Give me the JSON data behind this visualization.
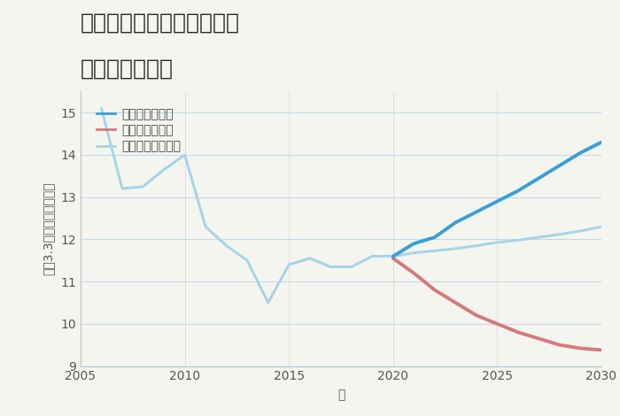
{
  "title_line1": "三重県桑名市長島町又木の",
  "title_line2": "土地の価格推移",
  "xlabel": "年",
  "ylabel": "坪（3.3㎡）単価（万円）",
  "background_color": "#f5f5f0",
  "plot_background": "#f5f5f0",
  "ylim": [
    9,
    15.5
  ],
  "xlim": [
    2005,
    2030
  ],
  "yticks": [
    9,
    10,
    11,
    12,
    13,
    14,
    15
  ],
  "xticks": [
    2005,
    2010,
    2015,
    2020,
    2025,
    2030
  ],
  "normal_scenario": {
    "x": [
      2006,
      2007,
      2008,
      2009,
      2010,
      2011,
      2012,
      2013,
      2014,
      2015,
      2016,
      2017,
      2018,
      2019,
      2020
    ],
    "y": [
      15.1,
      13.2,
      13.25,
      13.65,
      14.0,
      12.3,
      11.85,
      11.5,
      10.5,
      11.4,
      11.55,
      11.35,
      11.35,
      11.6,
      11.6
    ],
    "color": "#a8d4e6",
    "linewidth": 2.2,
    "label": "ノーマルシナリオ"
  },
  "good_scenario": {
    "x": [
      2020,
      2021,
      2022,
      2023,
      2024,
      2025,
      2026,
      2027,
      2028,
      2029,
      2030
    ],
    "y": [
      11.6,
      11.9,
      12.05,
      12.4,
      12.65,
      12.9,
      13.15,
      13.45,
      13.75,
      14.05,
      14.3
    ],
    "color": "#3a9fd5",
    "linewidth": 2.8,
    "label": "グッドシナリオ"
  },
  "bad_scenario": {
    "x": [
      2020,
      2021,
      2022,
      2023,
      2024,
      2025,
      2026,
      2027,
      2028,
      2029,
      2030
    ],
    "y": [
      11.55,
      11.2,
      10.8,
      10.5,
      10.2,
      10.0,
      9.8,
      9.65,
      9.5,
      9.42,
      9.38
    ],
    "color": "#d47a7a",
    "linewidth": 2.8,
    "label": "バッドシナリオ"
  },
  "normal_future": {
    "x": [
      2020,
      2021,
      2022,
      2023,
      2024,
      2025,
      2026,
      2027,
      2028,
      2029,
      2030
    ],
    "y": [
      11.6,
      11.68,
      11.73,
      11.78,
      11.85,
      11.93,
      11.98,
      12.05,
      12.12,
      12.2,
      12.3
    ],
    "color": "#a8d4e6",
    "linewidth": 2.2
  },
  "grid_color": "#c8d8e8",
  "title_fontsize": 18,
  "label_fontsize": 10,
  "tick_fontsize": 10,
  "legend_fontsize": 10
}
